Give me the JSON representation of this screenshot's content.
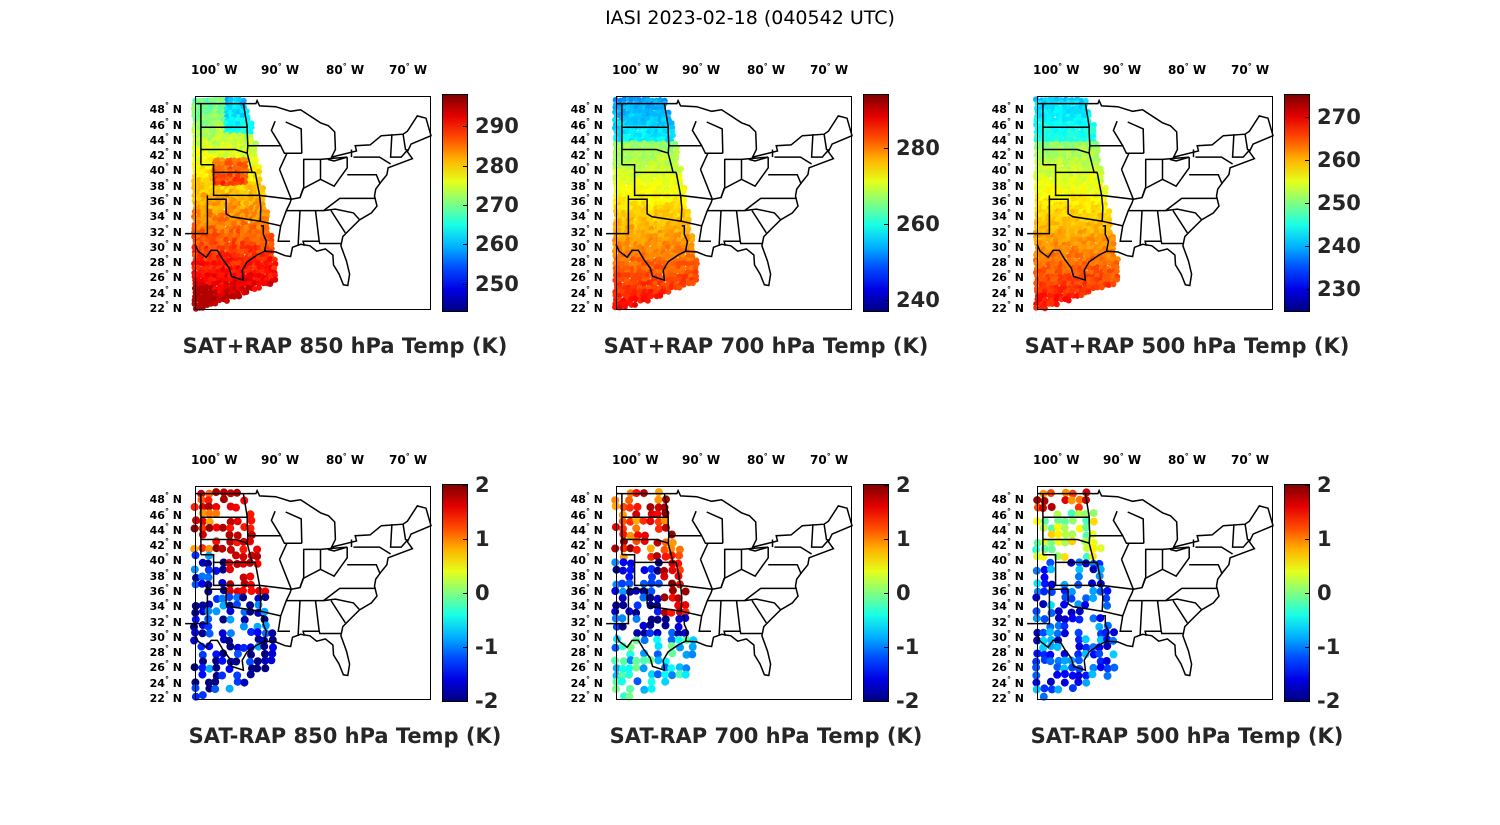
{
  "figure_title": "IASI 2023-02-18 (040542 UTC)",
  "lon_labels": [
    "100",
    "90",
    "80",
    "70"
  ],
  "lon_suffix": "W",
  "lat_labels": [
    "48",
    "46",
    "44",
    "42",
    "40",
    "38",
    "36",
    "34",
    "32",
    "30",
    "28",
    "26",
    "24",
    "22"
  ],
  "lat_suffix": "N",
  "degree_symbol": "°",
  "panels": [
    {
      "title": "SAT+RAP 850 hPa Temp (K)",
      "colorbar_ticks": [
        "290",
        "280",
        "270",
        "260",
        "250"
      ],
      "range": [
        243,
        298
      ],
      "kind": "temp850"
    },
    {
      "title": "SAT+RAP 700 hPa Temp (K)",
      "colorbar_ticks": [
        "280",
        "260",
        "240"
      ],
      "range": [
        237,
        294
      ],
      "kind": "temp700"
    },
    {
      "title": "SAT+RAP 500 hPa Temp (K)",
      "colorbar_ticks": [
        "270",
        "260",
        "250",
        "240",
        "230"
      ],
      "range": [
        225,
        275
      ],
      "kind": "temp500"
    },
    {
      "title": "SAT-RAP 850 hPa Temp (K)",
      "colorbar_ticks": [
        "2",
        "1",
        "0",
        "-1",
        "-2"
      ],
      "range": [
        -2,
        2
      ],
      "kind": "diff850"
    },
    {
      "title": "SAT-RAP 700 hPa Temp (K)",
      "colorbar_ticks": [
        "2",
        "1",
        "0",
        "-1",
        "-2"
      ],
      "range": [
        -2,
        2
      ],
      "kind": "diff700"
    },
    {
      "title": "SAT-RAP 500 hPa Temp (K)",
      "colorbar_ticks": [
        "2",
        "1",
        "0",
        "-1",
        "-2"
      ],
      "range": [
        -2,
        2
      ],
      "kind": "diff500"
    }
  ],
  "chart_data": {
    "type": "map",
    "map_extent": {
      "lon": [
        -105,
        -67
      ],
      "lat": [
        22,
        50
      ]
    },
    "swath_description": "IASI satellite swath over central US / Great Plains",
    "colormap": "jet"
  }
}
